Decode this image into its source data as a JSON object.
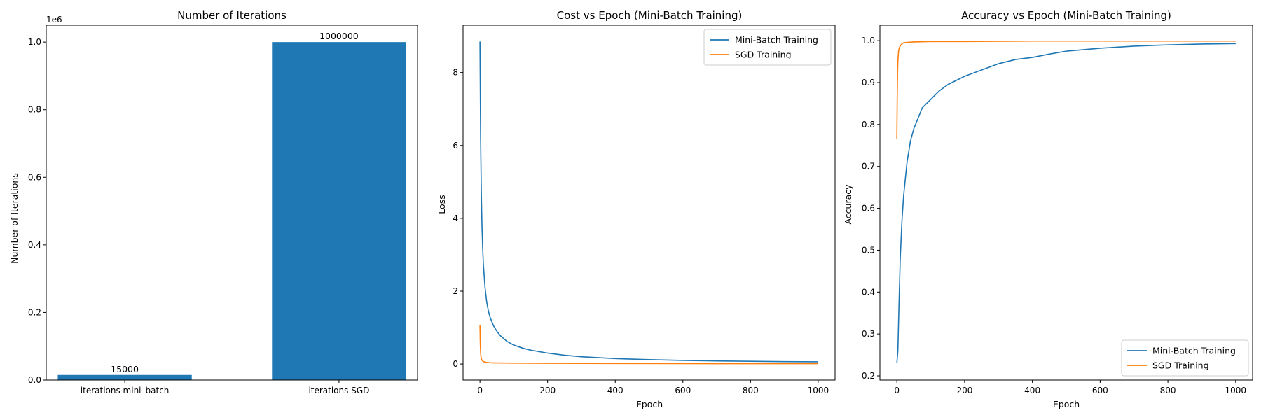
{
  "chart_data": [
    {
      "type": "bar",
      "title": "Number of Iterations",
      "ylabel": "Number of Iterations",
      "xlabel": "",
      "categories": [
        "iterations mini_batch",
        "iterations SGD"
      ],
      "values": [
        15000,
        1000000
      ],
      "value_labels": [
        "15000",
        "1000000"
      ],
      "ylim": [
        0,
        1050000
      ],
      "yticks": [
        0,
        200000,
        400000,
        600000,
        800000,
        1000000
      ],
      "ytick_labels": [
        "0.0",
        "0.2",
        "0.4",
        "0.6",
        "0.8",
        "1.0"
      ],
      "y_offset_label": "1e6",
      "bar_color": "#1f77b4",
      "grid": false
    },
    {
      "type": "line",
      "title": "Cost vs Epoch (Mini-Batch Training)",
      "xlabel": "Epoch",
      "ylabel": "Loss",
      "xlim": [
        -50,
        1050
      ],
      "ylim": [
        -0.44,
        9.3
      ],
      "xticks": [
        0,
        200,
        400,
        600,
        800,
        1000
      ],
      "yticks": [
        0,
        2,
        4,
        6,
        8
      ],
      "legend_position": "upper-right",
      "grid": false,
      "series": [
        {
          "name": "Mini-Batch Training",
          "color": "#1f77b4",
          "x": [
            0,
            2,
            4,
            6,
            8,
            10,
            15,
            20,
            25,
            30,
            40,
            50,
            60,
            80,
            100,
            125,
            150,
            200,
            250,
            300,
            400,
            500,
            600,
            700,
            800,
            900,
            1000
          ],
          "y": [
            8.85,
            6.2,
            4.7,
            3.8,
            3.2,
            2.75,
            2.1,
            1.7,
            1.45,
            1.28,
            1.05,
            0.9,
            0.78,
            0.62,
            0.52,
            0.44,
            0.38,
            0.3,
            0.24,
            0.2,
            0.15,
            0.12,
            0.1,
            0.085,
            0.075,
            0.065,
            0.06
          ]
        },
        {
          "name": "SGD Training",
          "color": "#ff7f0e",
          "x": [
            0,
            1,
            2,
            3,
            5,
            8,
            12,
            20,
            30,
            50,
            100,
            200,
            400,
            600,
            800,
            1000
          ],
          "y": [
            1.07,
            0.55,
            0.3,
            0.2,
            0.12,
            0.08,
            0.06,
            0.045,
            0.035,
            0.03,
            0.025,
            0.02,
            0.015,
            0.012,
            0.01,
            0.01
          ]
        }
      ]
    },
    {
      "type": "line",
      "title": "Accuracy vs Epoch (Mini-Batch Training)",
      "xlabel": "Epoch",
      "ylabel": "Accuracy",
      "xlim": [
        -50,
        1050
      ],
      "ylim": [
        0.19,
        1.037
      ],
      "xticks": [
        0,
        200,
        400,
        600,
        800,
        1000
      ],
      "yticks": [
        0.2,
        0.3,
        0.4,
        0.5,
        0.6,
        0.7,
        0.8,
        0.9,
        1.0
      ],
      "legend_position": "lower-right",
      "grid": false,
      "series": [
        {
          "name": "Mini-Batch Training",
          "color": "#1f77b4",
          "x": [
            0,
            3,
            6,
            10,
            15,
            20,
            25,
            30,
            40,
            50,
            60,
            75,
            100,
            125,
            150,
            175,
            200,
            250,
            300,
            350,
            400,
            450,
            500,
            600,
            700,
            800,
            900,
            1000
          ],
          "y": [
            0.23,
            0.26,
            0.36,
            0.48,
            0.57,
            0.63,
            0.67,
            0.71,
            0.76,
            0.79,
            0.81,
            0.84,
            0.86,
            0.88,
            0.895,
            0.905,
            0.915,
            0.93,
            0.945,
            0.955,
            0.96,
            0.968,
            0.975,
            0.982,
            0.987,
            0.99,
            0.992,
            0.993
          ]
        },
        {
          "name": "SGD Training",
          "color": "#ff7f0e",
          "x": [
            0,
            1,
            2,
            3,
            5,
            8,
            12,
            16,
            20,
            30,
            50,
            100,
            200,
            400,
            600,
            800,
            1000
          ],
          "y": [
            0.765,
            0.86,
            0.92,
            0.95,
            0.975,
            0.985,
            0.99,
            0.993,
            0.995,
            0.996,
            0.997,
            0.998,
            0.998,
            0.999,
            0.999,
            0.999,
            0.999
          ]
        }
      ]
    }
  ]
}
